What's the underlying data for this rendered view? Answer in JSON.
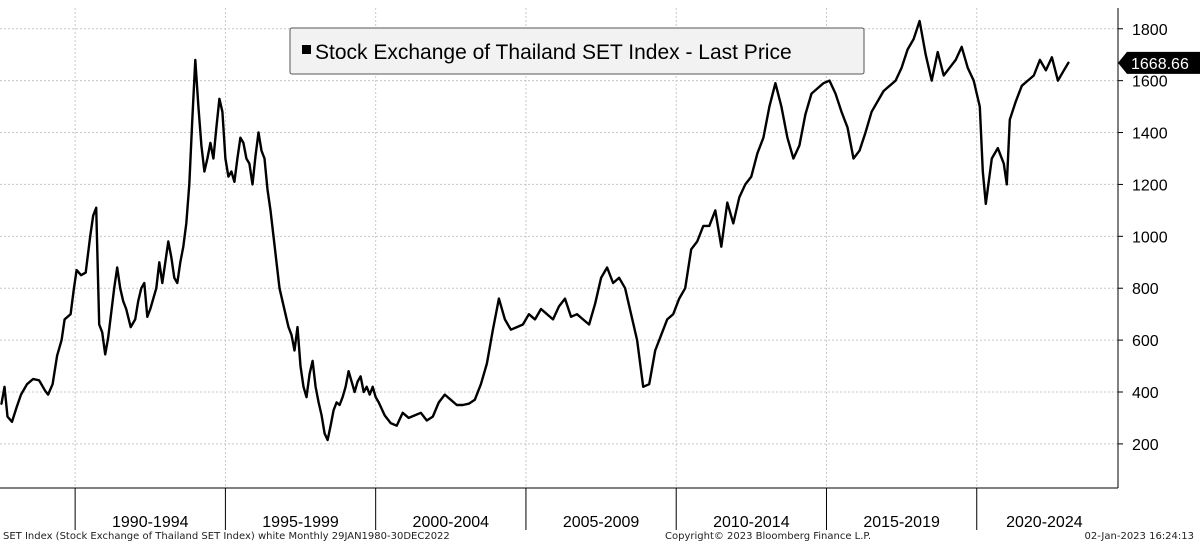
{
  "chart_data": {
    "type": "line",
    "title": "Stock Exchange of Thailand SET Index - Last Price",
    "legend_position": "top-center",
    "grid": true,
    "ylim": [
      30,
      1880
    ],
    "xlim": [
      1987.4,
      2024.6
    ],
    "yticks": [
      200,
      400,
      600,
      800,
      1000,
      1200,
      1400,
      1600,
      1800
    ],
    "period_labels": [
      "1990-1994",
      "1995-1999",
      "2000-2004",
      "2005-2009",
      "2010-2014",
      "2015-2019",
      "2020-2024"
    ],
    "period_bounds": [
      1989.9,
      1994.9,
      1999.9,
      2004.9,
      2009.9,
      2014.9,
      2019.9
    ],
    "last_value_label": "1668.66",
    "series": [
      {
        "name": "Stock Exchange of Thailand SET Index - Last Price",
        "color": "#000000",
        "points": [
          [
            1987.45,
            355
          ],
          [
            1987.55,
            420
          ],
          [
            1987.65,
            305
          ],
          [
            1987.8,
            285
          ],
          [
            1987.95,
            340
          ],
          [
            1988.1,
            390
          ],
          [
            1988.3,
            430
          ],
          [
            1988.5,
            450
          ],
          [
            1988.7,
            445
          ],
          [
            1988.9,
            405
          ],
          [
            1989.0,
            390
          ],
          [
            1989.15,
            430
          ],
          [
            1989.3,
            540
          ],
          [
            1989.45,
            600
          ],
          [
            1989.55,
            680
          ],
          [
            1989.75,
            700
          ],
          [
            1989.85,
            790
          ],
          [
            1989.95,
            870
          ],
          [
            1990.1,
            850
          ],
          [
            1990.25,
            860
          ],
          [
            1990.4,
            1000
          ],
          [
            1990.5,
            1080
          ],
          [
            1990.6,
            1110
          ],
          [
            1990.7,
            660
          ],
          [
            1990.8,
            630
          ],
          [
            1990.9,
            545
          ],
          [
            1991.0,
            610
          ],
          [
            1991.2,
            800
          ],
          [
            1991.3,
            880
          ],
          [
            1991.4,
            800
          ],
          [
            1991.5,
            750
          ],
          [
            1991.6,
            720
          ],
          [
            1991.75,
            650
          ],
          [
            1991.9,
            680
          ],
          [
            1992.0,
            750
          ],
          [
            1992.1,
            800
          ],
          [
            1992.2,
            820
          ],
          [
            1992.3,
            690
          ],
          [
            1992.4,
            720
          ],
          [
            1992.5,
            760
          ],
          [
            1992.6,
            800
          ],
          [
            1992.7,
            900
          ],
          [
            1992.8,
            820
          ],
          [
            1992.9,
            900
          ],
          [
            1993.0,
            980
          ],
          [
            1993.1,
            920
          ],
          [
            1993.2,
            840
          ],
          [
            1993.3,
            820
          ],
          [
            1993.4,
            900
          ],
          [
            1993.5,
            960
          ],
          [
            1993.6,
            1050
          ],
          [
            1993.7,
            1200
          ],
          [
            1993.8,
            1450
          ],
          [
            1993.9,
            1680
          ],
          [
            1994.0,
            1500
          ],
          [
            1994.1,
            1350
          ],
          [
            1994.2,
            1250
          ],
          [
            1994.3,
            1300
          ],
          [
            1994.4,
            1360
          ],
          [
            1994.5,
            1300
          ],
          [
            1994.6,
            1420
          ],
          [
            1994.7,
            1530
          ],
          [
            1994.8,
            1480
          ],
          [
            1994.9,
            1300
          ],
          [
            1995.0,
            1230
          ],
          [
            1995.1,
            1250
          ],
          [
            1995.2,
            1210
          ],
          [
            1995.3,
            1300
          ],
          [
            1995.4,
            1380
          ],
          [
            1995.5,
            1360
          ],
          [
            1995.6,
            1300
          ],
          [
            1995.7,
            1280
          ],
          [
            1995.8,
            1200
          ],
          [
            1995.9,
            1310
          ],
          [
            1996.0,
            1400
          ],
          [
            1996.1,
            1330
          ],
          [
            1996.2,
            1300
          ],
          [
            1996.3,
            1180
          ],
          [
            1996.4,
            1100
          ],
          [
            1996.5,
            1000
          ],
          [
            1996.6,
            900
          ],
          [
            1996.7,
            800
          ],
          [
            1996.8,
            750
          ],
          [
            1996.9,
            700
          ],
          [
            1997.0,
            650
          ],
          [
            1997.1,
            620
          ],
          [
            1997.2,
            560
          ],
          [
            1997.3,
            650
          ],
          [
            1997.4,
            500
          ],
          [
            1997.5,
            420
          ],
          [
            1997.6,
            380
          ],
          [
            1997.7,
            470
          ],
          [
            1997.8,
            520
          ],
          [
            1997.9,
            420
          ],
          [
            1998.0,
            360
          ],
          [
            1998.1,
            310
          ],
          [
            1998.2,
            240
          ],
          [
            1998.3,
            215
          ],
          [
            1998.4,
            270
          ],
          [
            1998.5,
            330
          ],
          [
            1998.6,
            360
          ],
          [
            1998.7,
            350
          ],
          [
            1998.8,
            380
          ],
          [
            1998.9,
            420
          ],
          [
            1999.0,
            480
          ],
          [
            1999.1,
            440
          ],
          [
            1999.2,
            400
          ],
          [
            1999.3,
            440
          ],
          [
            1999.4,
            460
          ],
          [
            1999.5,
            400
          ],
          [
            1999.6,
            420
          ],
          [
            1999.7,
            390
          ],
          [
            1999.8,
            420
          ],
          [
            1999.9,
            380
          ],
          [
            2000.0,
            360
          ],
          [
            2000.2,
            310
          ],
          [
            2000.4,
            280
          ],
          [
            2000.6,
            270
          ],
          [
            2000.8,
            320
          ],
          [
            2001.0,
            300
          ],
          [
            2001.2,
            310
          ],
          [
            2001.4,
            320
          ],
          [
            2001.6,
            290
          ],
          [
            2001.8,
            305
          ],
          [
            2002.0,
            360
          ],
          [
            2002.2,
            390
          ],
          [
            2002.4,
            370
          ],
          [
            2002.6,
            350
          ],
          [
            2002.8,
            350
          ],
          [
            2003.0,
            355
          ],
          [
            2003.2,
            370
          ],
          [
            2003.4,
            430
          ],
          [
            2003.6,
            510
          ],
          [
            2003.8,
            640
          ],
          [
            2003.9,
            700
          ],
          [
            2004.0,
            760
          ],
          [
            2004.2,
            680
          ],
          [
            2004.4,
            640
          ],
          [
            2004.6,
            650
          ],
          [
            2004.8,
            660
          ],
          [
            2005.0,
            700
          ],
          [
            2005.2,
            680
          ],
          [
            2005.4,
            720
          ],
          [
            2005.6,
            700
          ],
          [
            2005.8,
            680
          ],
          [
            2006.0,
            730
          ],
          [
            2006.2,
            760
          ],
          [
            2006.4,
            690
          ],
          [
            2006.6,
            700
          ],
          [
            2006.8,
            680
          ],
          [
            2007.0,
            660
          ],
          [
            2007.2,
            740
          ],
          [
            2007.4,
            840
          ],
          [
            2007.6,
            880
          ],
          [
            2007.8,
            820
          ],
          [
            2008.0,
            840
          ],
          [
            2008.2,
            800
          ],
          [
            2008.4,
            700
          ],
          [
            2008.6,
            600
          ],
          [
            2008.8,
            420
          ],
          [
            2009.0,
            430
          ],
          [
            2009.2,
            560
          ],
          [
            2009.4,
            620
          ],
          [
            2009.6,
            680
          ],
          [
            2009.8,
            700
          ],
          [
            2010.0,
            760
          ],
          [
            2010.2,
            800
          ],
          [
            2010.4,
            950
          ],
          [
            2010.6,
            980
          ],
          [
            2010.8,
            1040
          ],
          [
            2011.0,
            1040
          ],
          [
            2011.2,
            1100
          ],
          [
            2011.4,
            960
          ],
          [
            2011.6,
            1130
          ],
          [
            2011.8,
            1050
          ],
          [
            2012.0,
            1150
          ],
          [
            2012.2,
            1200
          ],
          [
            2012.4,
            1230
          ],
          [
            2012.6,
            1320
          ],
          [
            2012.8,
            1380
          ],
          [
            2013.0,
            1500
          ],
          [
            2013.2,
            1590
          ],
          [
            2013.4,
            1500
          ],
          [
            2013.6,
            1380
          ],
          [
            2013.8,
            1300
          ],
          [
            2014.0,
            1350
          ],
          [
            2014.2,
            1470
          ],
          [
            2014.4,
            1550
          ],
          [
            2014.6,
            1570
          ],
          [
            2014.8,
            1590
          ],
          [
            2015.0,
            1600
          ],
          [
            2015.2,
            1550
          ],
          [
            2015.4,
            1480
          ],
          [
            2015.6,
            1420
          ],
          [
            2015.8,
            1300
          ],
          [
            2016.0,
            1330
          ],
          [
            2016.2,
            1400
          ],
          [
            2016.4,
            1480
          ],
          [
            2016.6,
            1520
          ],
          [
            2016.8,
            1560
          ],
          [
            2017.0,
            1580
          ],
          [
            2017.2,
            1600
          ],
          [
            2017.4,
            1650
          ],
          [
            2017.6,
            1720
          ],
          [
            2017.8,
            1760
          ],
          [
            2018.0,
            1830
          ],
          [
            2018.2,
            1700
          ],
          [
            2018.4,
            1600
          ],
          [
            2018.6,
            1710
          ],
          [
            2018.8,
            1620
          ],
          [
            2019.0,
            1650
          ],
          [
            2019.2,
            1680
          ],
          [
            2019.4,
            1730
          ],
          [
            2019.6,
            1650
          ],
          [
            2019.8,
            1600
          ],
          [
            2020.0,
            1500
          ],
          [
            2020.1,
            1250
          ],
          [
            2020.2,
            1125
          ],
          [
            2020.4,
            1300
          ],
          [
            2020.6,
            1340
          ],
          [
            2020.8,
            1280
          ],
          [
            2020.9,
            1200
          ],
          [
            2021.0,
            1450
          ],
          [
            2021.2,
            1520
          ],
          [
            2021.4,
            1580
          ],
          [
            2021.6,
            1600
          ],
          [
            2021.8,
            1620
          ],
          [
            2022.0,
            1680
          ],
          [
            2022.2,
            1640
          ],
          [
            2022.4,
            1690
          ],
          [
            2022.6,
            1600
          ],
          [
            2022.8,
            1640
          ],
          [
            2022.95,
            1668.66
          ]
        ]
      }
    ]
  },
  "footer": {
    "left": "SET Index (Stock Exchange of Thailand SET Index) white  Monthly 29JAN1980-30DEC2022",
    "mid": "Copyright© 2023 Bloomberg Finance L.P.",
    "right": "02-Jan-2023 16:24:13"
  },
  "colors": {
    "line": "#000000",
    "grid": "#c8c8c8",
    "legend_bg": "#f2f2f2",
    "value_tag_bg": "#000000",
    "value_tag_fg": "#ffffff"
  }
}
